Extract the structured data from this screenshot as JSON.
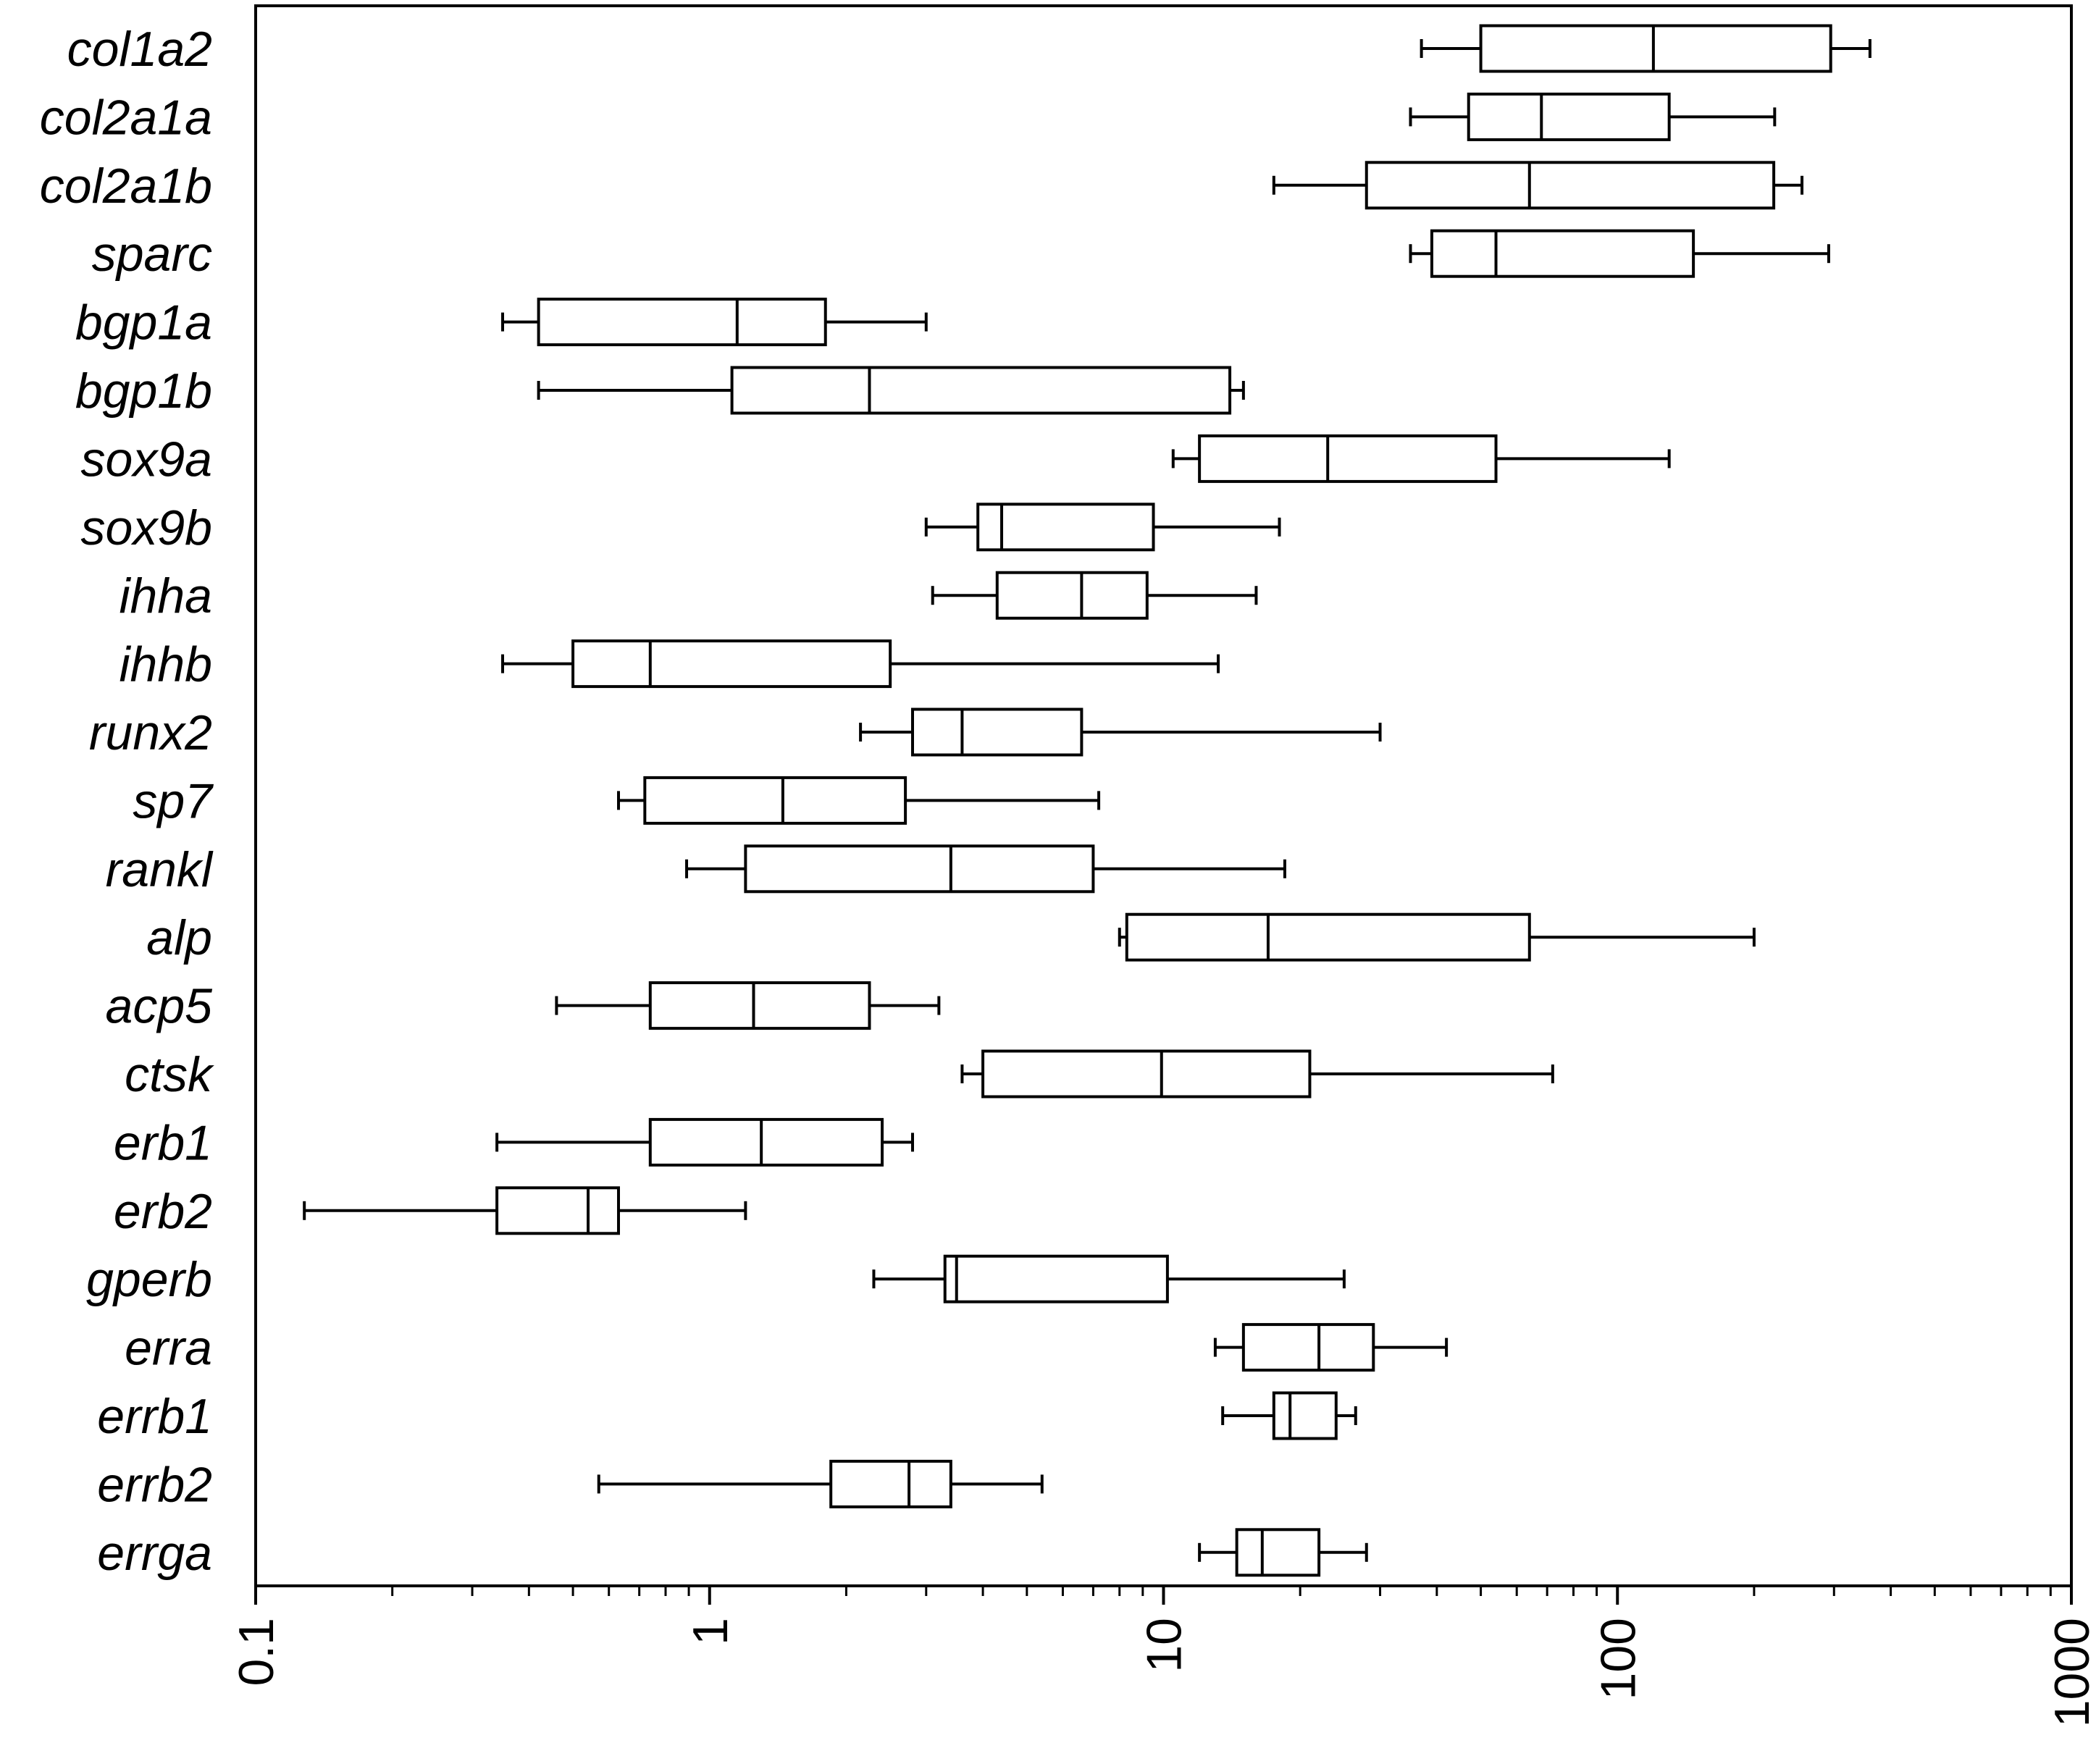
{
  "chart_data": {
    "type": "box",
    "orientation": "horizontal",
    "x_scale": "log",
    "xlim": [
      0.1,
      1000
    ],
    "x_tick_labels": [
      "0.1",
      "1",
      "10",
      "100",
      "1000"
    ],
    "x_tick_values": [
      0.1,
      1,
      10,
      100,
      1000
    ],
    "title": "",
    "xlabel": "",
    "ylabel": "",
    "grid": false,
    "categories": [
      "col1a2",
      "col2a1a",
      "col2a1b",
      "sparc",
      "bgp1a",
      "bgp1b",
      "sox9a",
      "sox9b",
      "ihha",
      "ihhb",
      "runx2",
      "sp7",
      "rankl",
      "alp",
      "acp5",
      "ctsk",
      "erb1",
      "erb2",
      "gperb",
      "erra",
      "errb1",
      "errb2",
      "errga"
    ],
    "boxes": [
      {
        "label": "col1a2",
        "min": 37,
        "q1": 50,
        "median": 120,
        "q3": 295,
        "max": 360
      },
      {
        "label": "col2a1a",
        "min": 35,
        "q1": 47,
        "median": 68,
        "q3": 130,
        "max": 222
      },
      {
        "label": "col2a1b",
        "min": 17.5,
        "q1": 28,
        "median": 64,
        "q3": 221,
        "max": 255
      },
      {
        "label": "sparc",
        "min": 35,
        "q1": 39,
        "median": 54,
        "q3": 147,
        "max": 292
      },
      {
        "label": "bgp1a",
        "min": 0.35,
        "q1": 0.42,
        "median": 1.15,
        "q3": 1.8,
        "max": 3.0
      },
      {
        "label": "bgp1b",
        "min": 0.42,
        "q1": 1.12,
        "median": 2.25,
        "q3": 14,
        "max": 15
      },
      {
        "label": "sox9a",
        "min": 10.5,
        "q1": 12,
        "median": 23,
        "q3": 54,
        "max": 130
      },
      {
        "label": "sox9b",
        "min": 3.0,
        "q1": 3.9,
        "median": 4.4,
        "q3": 9.5,
        "max": 18
      },
      {
        "label": "ihha",
        "min": 3.1,
        "q1": 4.3,
        "median": 6.6,
        "q3": 9.2,
        "max": 16
      },
      {
        "label": "ihhb",
        "min": 0.35,
        "q1": 0.5,
        "median": 0.74,
        "q3": 2.5,
        "max": 13.2
      },
      {
        "label": "runx2",
        "min": 2.15,
        "q1": 2.8,
        "median": 3.6,
        "q3": 6.6,
        "max": 30
      },
      {
        "label": "sp7",
        "min": 0.63,
        "q1": 0.72,
        "median": 1.45,
        "q3": 2.7,
        "max": 7.2
      },
      {
        "label": "rankl",
        "min": 0.89,
        "q1": 1.2,
        "median": 3.4,
        "q3": 7.0,
        "max": 18.5
      },
      {
        "label": "alp",
        "min": 8.0,
        "q1": 8.3,
        "median": 17,
        "q3": 64,
        "max": 200
      },
      {
        "label": "acp5",
        "min": 0.46,
        "q1": 0.74,
        "median": 1.25,
        "q3": 2.25,
        "max": 3.2
      },
      {
        "label": "ctsk",
        "min": 3.6,
        "q1": 4.0,
        "median": 9.9,
        "q3": 21,
        "max": 72
      },
      {
        "label": "erb1",
        "min": 0.34,
        "q1": 0.74,
        "median": 1.3,
        "q3": 2.4,
        "max": 2.8
      },
      {
        "label": "erb2",
        "min": 0.128,
        "q1": 0.34,
        "median": 0.54,
        "q3": 0.63,
        "max": 1.2
      },
      {
        "label": "gperb",
        "min": 2.3,
        "q1": 3.3,
        "median": 3.5,
        "q3": 10.2,
        "max": 25
      },
      {
        "label": "erra",
        "min": 13,
        "q1": 15,
        "median": 22,
        "q3": 29,
        "max": 42
      },
      {
        "label": "errb1",
        "min": 13.5,
        "q1": 17.5,
        "median": 19,
        "q3": 24,
        "max": 26.5
      },
      {
        "label": "errb2",
        "min": 0.57,
        "q1": 1.85,
        "median": 2.75,
        "q3": 3.4,
        "max": 5.4
      },
      {
        "label": "errga",
        "min": 12,
        "q1": 14.5,
        "median": 16.5,
        "q3": 22,
        "max": 28
      }
    ]
  }
}
